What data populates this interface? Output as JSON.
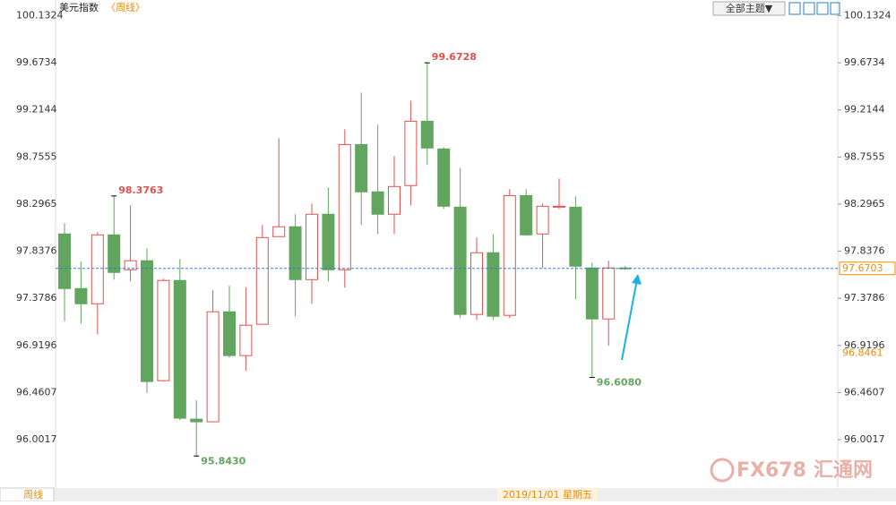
{
  "chart_data": {
    "type": "candlestick",
    "title": "美元指数",
    "period": "〈周线〉",
    "period_tab": "周线",
    "toolbar_button": "全部主题▼",
    "crosshair_label": "2019/11/01 星期五",
    "brand": "FX678",
    "brand_cn": "汇通网",
    "up_color": "#e0524e",
    "down_color": "#62a55e",
    "current_price": 97.6703,
    "marker_price": 96.8461,
    "annotations": [
      {
        "value": 98.3763,
        "label": "98.3763"
      },
      {
        "value": 99.6728,
        "label": "99.6728"
      },
      {
        "value": 95.843,
        "label": "95.8430"
      },
      {
        "value": 96.608,
        "label": "96.6080"
      }
    ],
    "ylim": [
      95.54,
      100.25
    ],
    "yticks": [
      100.1324,
      99.6734,
      99.2144,
      98.7555,
      98.2965,
      97.8376,
      97.3786,
      96.9196,
      96.4607,
      96.0017
    ],
    "open": [
      98.006,
      97.474,
      97.326,
      97.997,
      97.657,
      97.745,
      96.577,
      97.553,
      96.202,
      96.176,
      97.248,
      96.821,
      97.126,
      97.98,
      98.076,
      97.561,
      98.198,
      97.657,
      98.877,
      98.416,
      98.198,
      98.477,
      99.104,
      98.834,
      98.267,
      97.222,
      97.823,
      97.213,
      98.38,
      98.006,
      98.267,
      98.267,
      97.675,
      97.178,
      97.675
    ],
    "high": [
      98.111,
      97.736,
      98.024,
      98.3763,
      98.285,
      97.867,
      97.57,
      97.762,
      96.385,
      97.457,
      97.501,
      97.483,
      98.093,
      98.939,
      98.198,
      98.302,
      98.459,
      99.026,
      99.383,
      99.069,
      98.764,
      99.304,
      99.6728,
      98.851,
      98.651,
      97.971,
      98.006,
      98.442,
      98.442,
      98.302,
      98.546,
      98.372,
      97.727,
      97.745,
      97.692
    ],
    "low": [
      97.152,
      97.134,
      97.03,
      97.561,
      97.544,
      96.455,
      96.568,
      96.193,
      95.843,
      96.176,
      96.803,
      96.673,
      97.126,
      97.98,
      97.204,
      97.326,
      97.544,
      97.483,
      98.093,
      98.006,
      98.006,
      98.285,
      98.677,
      98.25,
      97.187,
      97.169,
      97.169,
      97.187,
      97.989,
      97.675,
      98.25,
      97.37,
      96.608,
      96.917,
      97.657
    ],
    "close": [
      97.474,
      97.326,
      97.997,
      97.631,
      97.745,
      96.568,
      97.553,
      96.211,
      96.176,
      97.248,
      96.821,
      97.117,
      97.971,
      98.076,
      97.561,
      98.198,
      97.657,
      98.877,
      98.416,
      98.198,
      98.468,
      99.104,
      98.843,
      98.276,
      97.222,
      97.823,
      97.204,
      98.38,
      97.997,
      98.276,
      98.276,
      97.692,
      97.178,
      97.675,
      97.6703
    ]
  }
}
